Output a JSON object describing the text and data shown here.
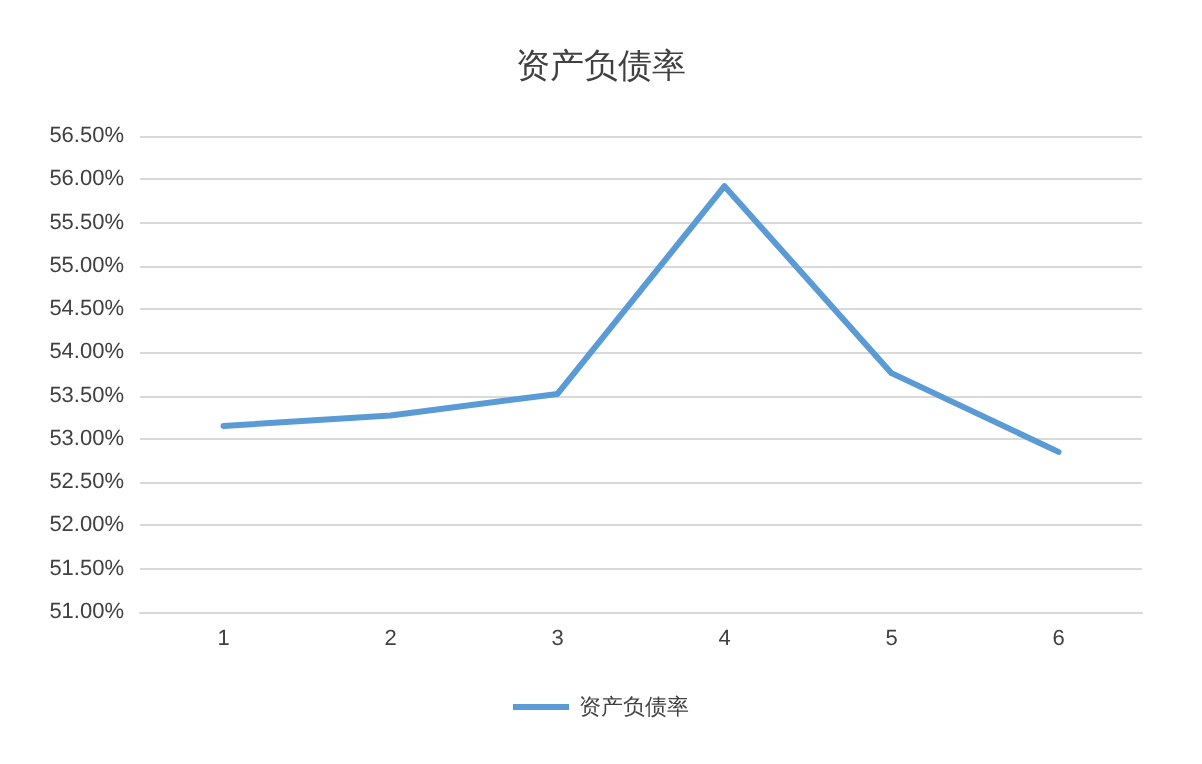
{
  "chart_data": {
    "type": "line",
    "title": "资产负债率",
    "categories": [
      "1",
      "2",
      "3",
      "4",
      "5",
      "6"
    ],
    "series": [
      {
        "name": "资产负债率",
        "color": "#5b9bd5",
        "values": [
          53.15,
          53.27,
          53.52,
          55.92,
          53.76,
          52.85
        ]
      }
    ],
    "ylim": [
      51,
      56.5
    ],
    "yticks": [
      {
        "value": 51,
        "label": "51.00%"
      },
      {
        "value": 51.5,
        "label": "51.50%"
      },
      {
        "value": 52,
        "label": "52.00%"
      },
      {
        "value": 52.5,
        "label": "52.50%"
      },
      {
        "value": 53,
        "label": "53.00%"
      },
      {
        "value": 53.5,
        "label": "53.50%"
      },
      {
        "value": 54,
        "label": "54.00%"
      },
      {
        "value": 54.5,
        "label": "54.50%"
      },
      {
        "value": 55,
        "label": "55.00%"
      },
      {
        "value": 55.5,
        "label": "55.50%"
      },
      {
        "value": 56,
        "label": "56.00%"
      },
      {
        "value": 56.5,
        "label": "56.50%"
      }
    ],
    "grid": "y",
    "legend": "bottom",
    "marker": "none",
    "line_style": "solid"
  }
}
